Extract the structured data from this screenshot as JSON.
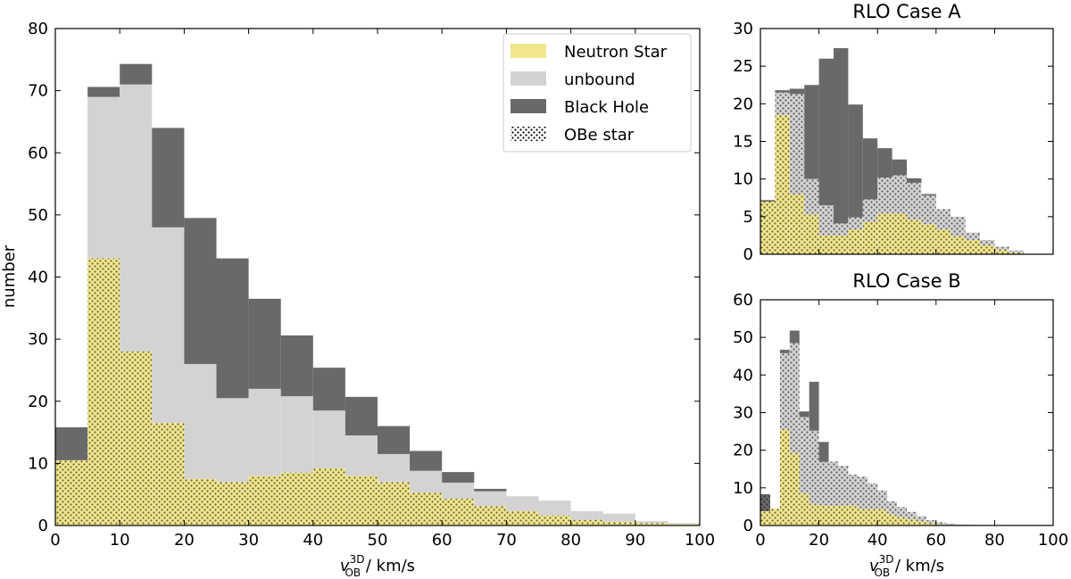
{
  "figure": {
    "x_axis_label": "v",
    "x_axis_sup": "3D",
    "x_axis_sub": "OB",
    "x_axis_unit": " / km/s"
  },
  "colors": {
    "neutron_star": "#f0e68c",
    "unbound": "#d3d3d3",
    "black_hole": "#696969",
    "edge": "#000000"
  },
  "legend": {
    "items": [
      {
        "key": "ns",
        "label": "Neutron Star"
      },
      {
        "key": "ub",
        "label": "unbound"
      },
      {
        "key": "bh",
        "label": "Black Hole"
      },
      {
        "key": "obe",
        "label": "OBe star"
      }
    ]
  },
  "chart_data": [
    {
      "id": "main",
      "type": "bar",
      "title": "",
      "xlabel": "v_OB^3D / km/s",
      "ylabel": "number",
      "bin_width": 5,
      "xlim": [
        0,
        100
      ],
      "ylim": [
        0,
        80
      ],
      "xticks": [
        0,
        10,
        20,
        30,
        40,
        50,
        60,
        70,
        80,
        90,
        100
      ],
      "yticks": [
        0,
        10,
        20,
        30,
        40,
        50,
        60,
        70,
        80
      ],
      "bins": [
        0,
        5,
        10,
        15,
        20,
        25,
        30,
        35,
        40,
        45,
        50,
        55,
        60,
        65,
        70,
        75,
        80,
        85,
        90,
        95
      ],
      "series": [
        {
          "name": "Neutron Star",
          "values": [
            10.5,
            43,
            28,
            16.5,
            7.5,
            7,
            8,
            8.5,
            9.2,
            8,
            7,
            5.3,
            4.3,
            3.1,
            2.3,
            1.6,
            0.9,
            0.6,
            0.4,
            0.2
          ]
        },
        {
          "name": "unbound",
          "values": [
            0,
            26,
            43,
            31.5,
            18.5,
            13.5,
            14,
            12.3,
            9.3,
            6.5,
            4.5,
            3.5,
            2.6,
            2.4,
            2.4,
            2.4,
            1.4,
            1.3,
            0.3,
            0.2
          ]
        },
        {
          "name": "Black Hole",
          "values": [
            5.3,
            1.6,
            3.3,
            16,
            23.5,
            22.5,
            14.5,
            9.8,
            6.9,
            6.2,
            4.5,
            3.2,
            1.7,
            0.4,
            0,
            0,
            0,
            0,
            0,
            0
          ]
        },
        {
          "name": "OBe star",
          "values": [
            10.5,
            43,
            28,
            16.5,
            7.5,
            7,
            8,
            8.5,
            9.2,
            8,
            7,
            5.3,
            4.3,
            3.1,
            2.3,
            1.6,
            0.9,
            0.6,
            0.4,
            0.2
          ]
        }
      ]
    },
    {
      "id": "caseA",
      "type": "bar",
      "title": "RLO Case A",
      "xlabel": "",
      "ylabel": "",
      "bin_width": 5,
      "xlim": [
        0,
        100
      ],
      "ylim": [
        0,
        30
      ],
      "xticks": [],
      "yticks": [
        0,
        5,
        10,
        15,
        20,
        25,
        30
      ],
      "bins": [
        0,
        5,
        10,
        15,
        20,
        25,
        30,
        35,
        40,
        45,
        50,
        55,
        60,
        65,
        70,
        75,
        80,
        85,
        90,
        95
      ],
      "series": [
        {
          "name": "Neutron Star",
          "values": [
            7,
            18.5,
            8,
            5.3,
            2.5,
            2.5,
            3.3,
            4.3,
            5.4,
            5.4,
            4.6,
            4.0,
            3.3,
            2.4,
            1.9,
            1.2,
            0.6,
            0.2,
            0,
            0
          ]
        },
        {
          "name": "unbound",
          "values": [
            0,
            3,
            13.3,
            4.7,
            4.0,
            1.6,
            1.6,
            3.0,
            4.8,
            5.1,
            4.9,
            3.8,
            2.7,
            2.6,
            1.0,
            0.7,
            0.4,
            0.3,
            0,
            0
          ]
        },
        {
          "name": "Black Hole",
          "values": [
            0.2,
            0.3,
            0.7,
            12.5,
            19.5,
            23.3,
            15.0,
            8.1,
            3.9,
            2.1,
            0.6,
            0.2,
            0,
            0,
            0,
            0,
            0,
            0,
            0,
            0
          ]
        },
        {
          "name": "OBe star",
          "values": [
            7,
            21.5,
            21.3,
            10,
            6.5,
            4.1,
            4.9,
            7.3,
            10.2,
            10.5,
            9.5,
            7.8,
            6.0,
            5.0,
            2.9,
            1.9,
            1.0,
            0.5,
            0,
            0
          ]
        }
      ]
    },
    {
      "id": "caseB",
      "type": "bar",
      "title": "RLO Case B",
      "xlabel": "v_OB^3D / km/s",
      "ylabel": "",
      "bin_width": 3.33,
      "xlim": [
        0,
        100
      ],
      "ylim": [
        0,
        60
      ],
      "xticks": [
        0,
        20,
        40,
        60,
        80,
        100
      ],
      "yticks": [
        0,
        10,
        20,
        30,
        40,
        50,
        60
      ],
      "bins": [
        0,
        3.33,
        6.67,
        10,
        13.33,
        16.67,
        20,
        23.33,
        26.67,
        30,
        33.33,
        36.67,
        40,
        43.33,
        46.67,
        50,
        53.33,
        56.67,
        60,
        63.33,
        66.67,
        70,
        73.33
      ],
      "series": [
        {
          "name": "Neutron Star",
          "values": [
            3.8,
            4.5,
            25.5,
            19.3,
            8.5,
            5.6,
            5.3,
            5.2,
            5.3,
            5.3,
            4.3,
            4.4,
            4.3,
            3.0,
            2.2,
            1.6,
            1.1,
            0.6,
            0.3,
            0.1,
            0,
            0,
            0
          ]
        },
        {
          "name": "unbound",
          "values": [
            0,
            0,
            20.3,
            29.2,
            20.3,
            19.6,
            11.6,
            11.8,
            10.6,
            8.2,
            8.7,
            6.8,
            5.0,
            3.4,
            2.7,
            2.0,
            1.4,
            0.8,
            0.6,
            0.4,
            0.3,
            0.2,
            0.1
          ]
        },
        {
          "name": "Black Hole",
          "values": [
            4.5,
            0,
            0.9,
            3.3,
            1.5,
            13,
            5.3,
            0,
            0,
            0,
            0,
            0,
            0,
            0,
            0,
            0,
            0,
            0,
            0,
            0,
            0,
            0,
            0
          ]
        },
        {
          "name": "OBe star",
          "values": [
            8.3,
            4.5,
            45.8,
            48.5,
            28.8,
            25.2,
            16.9,
            17.0,
            15.9,
            13.5,
            13.0,
            11.2,
            9.3,
            6.4,
            4.9,
            3.6,
            2.5,
            1.4,
            0.9,
            0.5,
            0.3,
            0.2,
            0.1
          ]
        }
      ]
    }
  ]
}
